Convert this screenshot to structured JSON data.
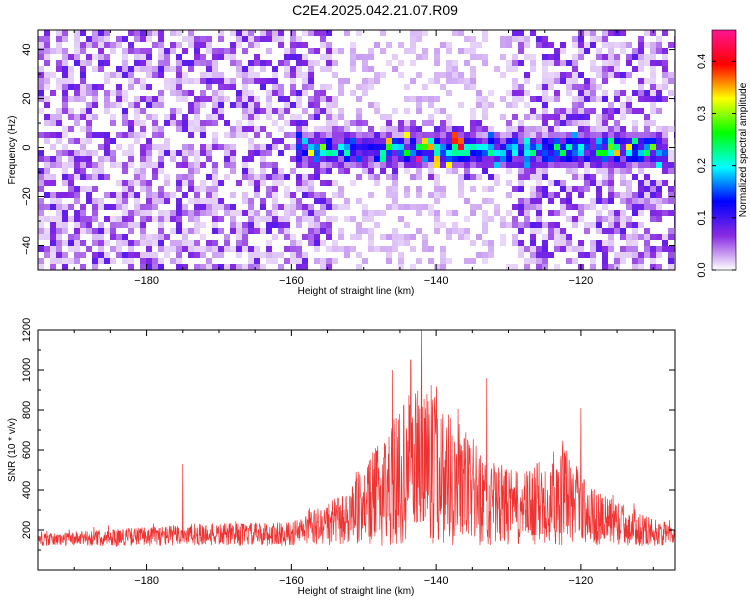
{
  "title": "C2E4.2025.042.21.07.R09",
  "chart_data": [
    {
      "type": "heatmap",
      "xlabel": "Height of straight line (km)",
      "ylabel": "Frequency (Hz)",
      "xlim": [
        -195,
        -107
      ],
      "ylim": [
        -50,
        48
      ],
      "xticks": [
        -180,
        -160,
        -140,
        -120
      ],
      "yticks": [
        -40,
        -20,
        0,
        20,
        40
      ],
      "colorbar": {
        "label": "Normalized spectral amplitude",
        "range": [
          0.0,
          0.46
        ],
        "ticks": [
          0.0,
          0.1,
          0.2,
          0.3,
          0.4
        ],
        "colormap": [
          "#ffffff",
          "#8a2be2",
          "#0000ff",
          "#00ffff",
          "#00ff00",
          "#ffff00",
          "#ff0000",
          "#ff1493"
        ]
      },
      "band_center_hz": 0,
      "band_halfwidth_hz": 8,
      "band_extent_km": [
        -160,
        -108
      ],
      "peak_amplitude": 0.46,
      "peak_height_km": -142
    },
    {
      "type": "line",
      "xlabel": "Height of straight line (km)",
      "ylabel": "SNR (10 * v/v)",
      "xlim": [
        -195,
        -107
      ],
      "ylim": [
        0,
        1200
      ],
      "xticks": [
        -180,
        -160,
        -140,
        -120
      ],
      "yticks": [
        200,
        400,
        600,
        800,
        1000,
        1200
      ],
      "color": "#ee3333",
      "baseline": 120,
      "envelope": [
        {
          "x": -195,
          "y": 180
        },
        {
          "x": -175,
          "y": 230
        },
        {
          "x": -160,
          "y": 240
        },
        {
          "x": -152,
          "y": 400
        },
        {
          "x": -146,
          "y": 750
        },
        {
          "x": -142,
          "y": 1000
        },
        {
          "x": -138,
          "y": 800
        },
        {
          "x": -133,
          "y": 560
        },
        {
          "x": -128,
          "y": 480
        },
        {
          "x": -123,
          "y": 640
        },
        {
          "x": -118,
          "y": 400
        },
        {
          "x": -110,
          "y": 260
        },
        {
          "x": -107,
          "y": 220
        }
      ],
      "peaks": [
        {
          "x": -142,
          "y": 1200
        },
        {
          "x": -143.5,
          "y": 1050
        },
        {
          "x": -146,
          "y": 1000
        },
        {
          "x": -133,
          "y": 960
        },
        {
          "x": -120,
          "y": 810
        },
        {
          "x": -175,
          "y": 530
        }
      ]
    }
  ]
}
